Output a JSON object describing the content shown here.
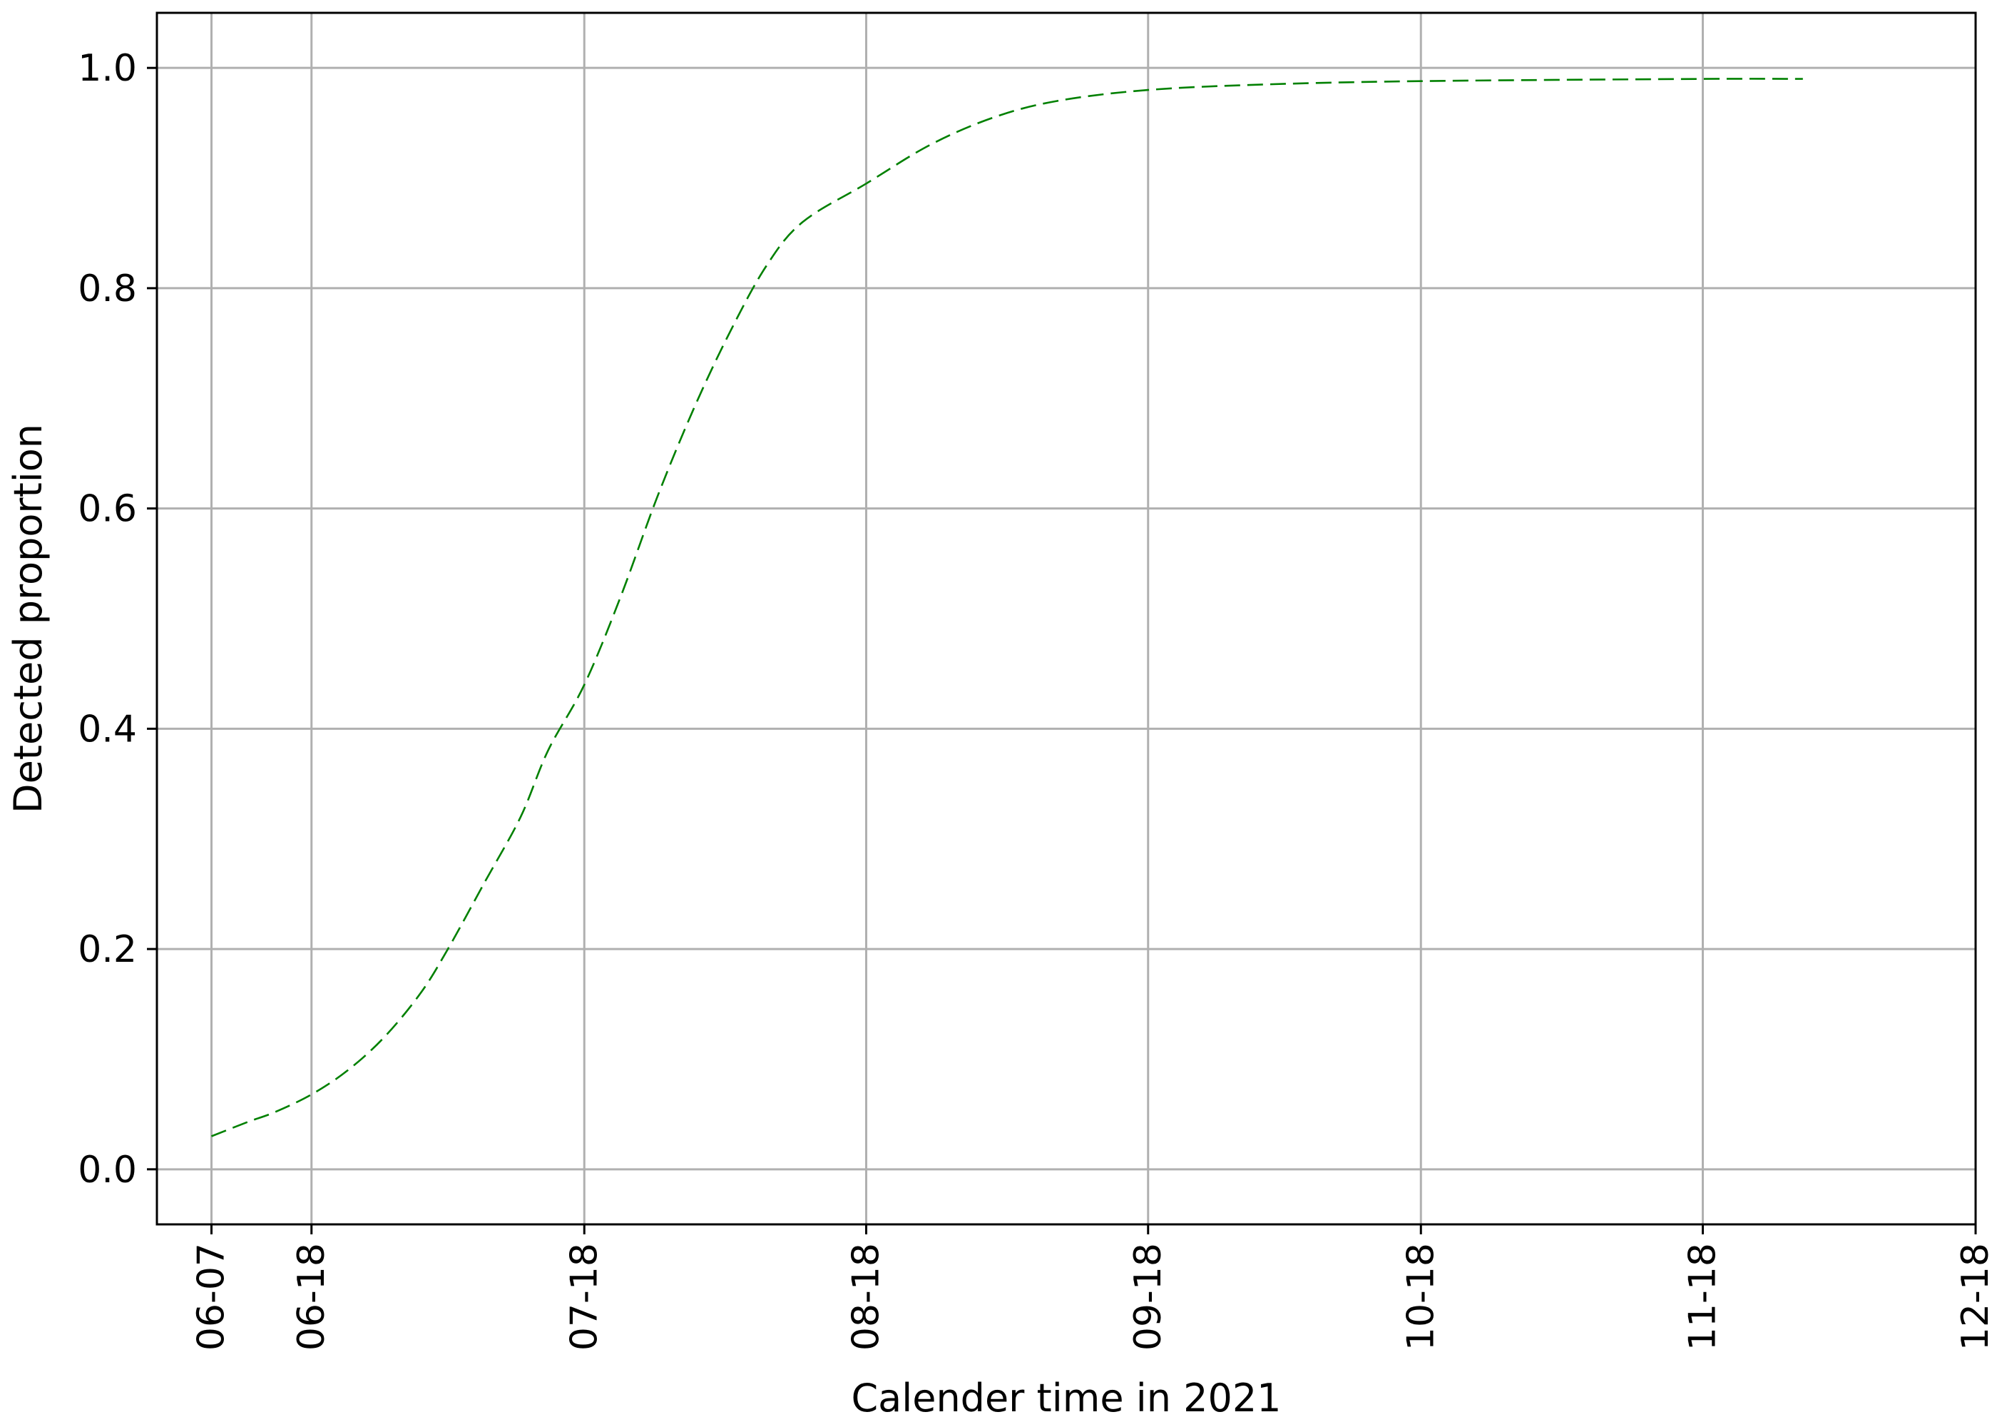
{
  "chart_data": {
    "type": "line",
    "title": "",
    "xlabel": "Calender time in 2021",
    "ylabel": "Detected proportion",
    "grid": true,
    "x_axis": {
      "kind": "date",
      "range": [
        "2021-06-01",
        "2021-12-18"
      ],
      "ticks": [
        {
          "date": "2021-06-07",
          "label": "06-07"
        },
        {
          "date": "2021-06-18",
          "label": "06-18"
        },
        {
          "date": "2021-07-18",
          "label": "07-18"
        },
        {
          "date": "2021-08-18",
          "label": "08-18"
        },
        {
          "date": "2021-09-18",
          "label": "09-18"
        },
        {
          "date": "2021-10-18",
          "label": "10-18"
        },
        {
          "date": "2021-11-18",
          "label": "11-18"
        },
        {
          "date": "2021-12-18",
          "label": "12-18"
        }
      ]
    },
    "y_axis": {
      "range": [
        -0.05,
        1.05
      ],
      "ticks": [
        {
          "value": 0.0,
          "label": "0.0"
        },
        {
          "value": 0.2,
          "label": "0.2"
        },
        {
          "value": 0.4,
          "label": "0.4"
        },
        {
          "value": 0.6,
          "label": "0.6"
        },
        {
          "value": 0.8,
          "label": "0.8"
        },
        {
          "value": 1.0,
          "label": "1.0"
        }
      ]
    },
    "series": [
      {
        "color": "#008000",
        "line_style": "dashed",
        "points": [
          {
            "x": "2021-06-07",
            "y": 0.03
          },
          {
            "x": "2021-06-11",
            "y": 0.043
          },
          {
            "x": "2021-06-14",
            "y": 0.052
          },
          {
            "x": "2021-06-18",
            "y": 0.068
          },
          {
            "x": "2021-06-22",
            "y": 0.09
          },
          {
            "x": "2021-06-26",
            "y": 0.12
          },
          {
            "x": "2021-06-30",
            "y": 0.16
          },
          {
            "x": "2021-07-03",
            "y": 0.2
          },
          {
            "x": "2021-07-07",
            "y": 0.26
          },
          {
            "x": "2021-07-11",
            "y": 0.32
          },
          {
            "x": "2021-07-14",
            "y": 0.38
          },
          {
            "x": "2021-07-18",
            "y": 0.44
          },
          {
            "x": "2021-07-22",
            "y": 0.52
          },
          {
            "x": "2021-07-26",
            "y": 0.61
          },
          {
            "x": "2021-07-30",
            "y": 0.69
          },
          {
            "x": "2021-08-03",
            "y": 0.76
          },
          {
            "x": "2021-08-07",
            "y": 0.82
          },
          {
            "x": "2021-08-11",
            "y": 0.86
          },
          {
            "x": "2021-08-18",
            "y": 0.895
          },
          {
            "x": "2021-08-25",
            "y": 0.93
          },
          {
            "x": "2021-09-01",
            "y": 0.955
          },
          {
            "x": "2021-09-08",
            "y": 0.97
          },
          {
            "x": "2021-09-18",
            "y": 0.98
          },
          {
            "x": "2021-10-01",
            "y": 0.985
          },
          {
            "x": "2021-10-18",
            "y": 0.988
          },
          {
            "x": "2021-11-18",
            "y": 0.99
          },
          {
            "x": "2021-11-29",
            "y": 0.99
          }
        ]
      }
    ]
  }
}
